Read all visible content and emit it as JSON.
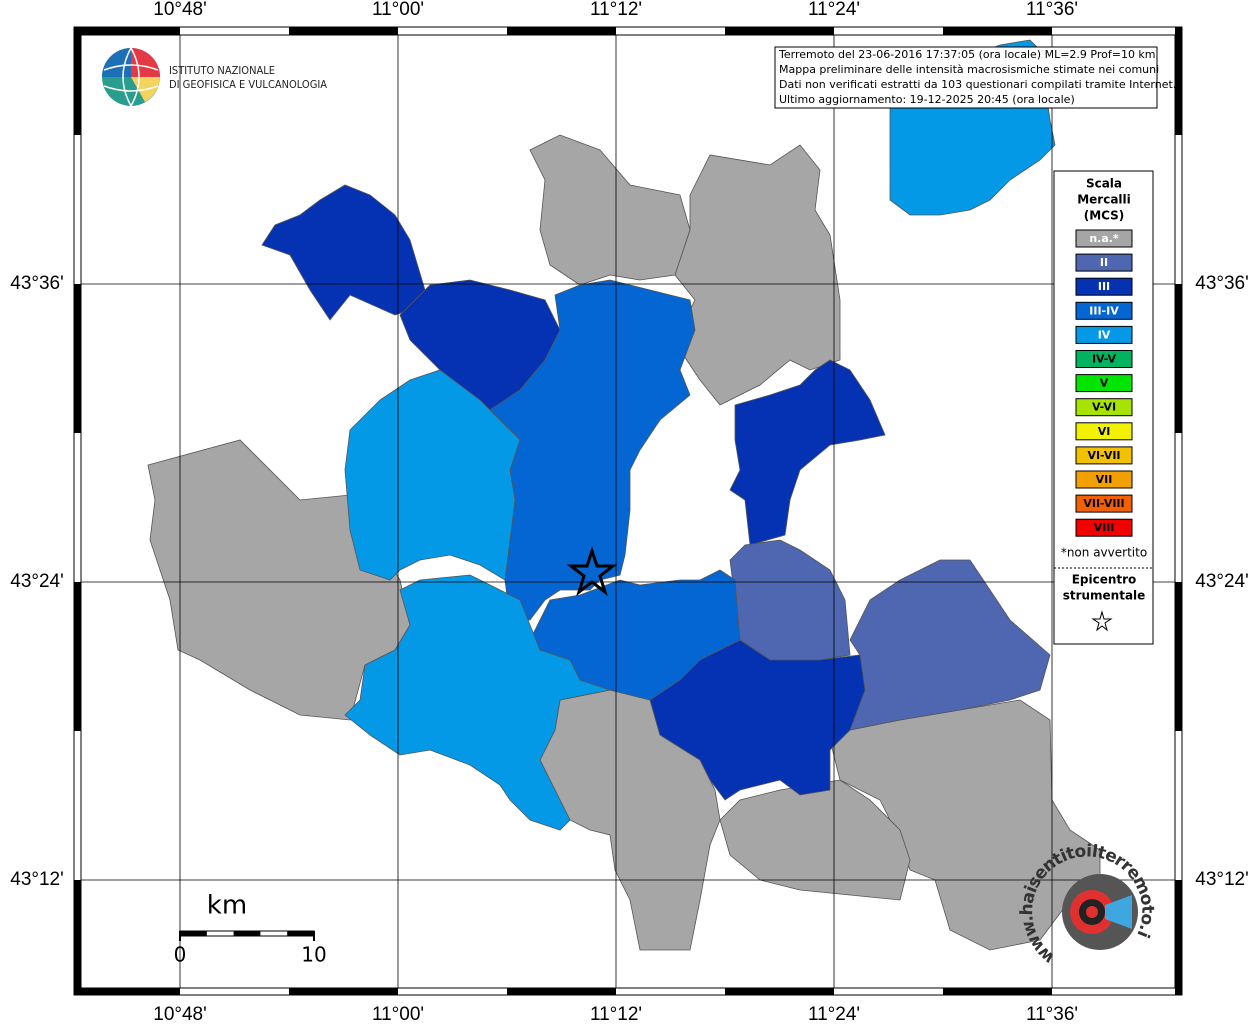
{
  "axes": {
    "lon_labels": [
      "10°48'",
      "11°00'",
      "11°12'",
      "11°24'",
      "11°36'"
    ],
    "lat_labels": [
      "43°36'",
      "43°24'",
      "43°12'"
    ]
  },
  "logo": {
    "line1": "ISTITUTO NAZIONALE",
    "line2": "DI GEOFISICA E VULCANOLOGIA"
  },
  "info": [
    "Terremoto del 23-06-2016 17:37:05 (ora locale) ML=2.9 Prof=10 km",
    "Mappa preliminare delle intensità macrosismiche stimate nei comuni",
    "Dati non verificati estratti da 103 questionari compilati tramite Internet.",
    "Ultimo aggiornamento: 19-12-2025 20:45 (ora locale)"
  ],
  "legend": {
    "title": [
      "Scala",
      "Mercalli",
      "(MCS)"
    ],
    "items": [
      {
        "label": "n.a.*",
        "color": "#a6a6a6"
      },
      {
        "label": "II",
        "color": "#4f67b0"
      },
      {
        "label": "III",
        "color": "#0432b2"
      },
      {
        "label": "III-IV",
        "color": "#0466d2"
      },
      {
        "label": "IV",
        "color": "#0499e6"
      },
      {
        "label": "IV-V",
        "color": "#00b35e"
      },
      {
        "label": "V",
        "color": "#00e400"
      },
      {
        "label": "V-VI",
        "color": "#a6e400"
      },
      {
        "label": "VI",
        "color": "#f2f200"
      },
      {
        "label": "VI-VII",
        "color": "#f2c200"
      },
      {
        "label": "VII",
        "color": "#f2a000"
      },
      {
        "label": "VII-VIII",
        "color": "#f26000"
      },
      {
        "label": "VIII",
        "color": "#f20000"
      }
    ],
    "note": "*non avvertito",
    "epicenter": [
      "Epicentro",
      "strumentale"
    ]
  },
  "scale_bar": {
    "unit": "km",
    "start": 0,
    "end": 10
  },
  "watermark": "www.haisentitoilterremoto.it"
}
